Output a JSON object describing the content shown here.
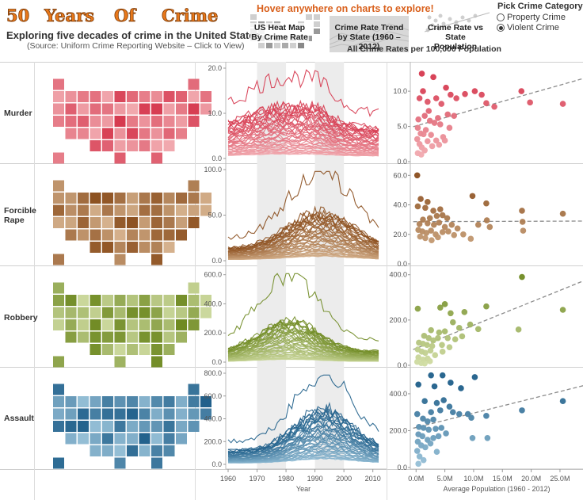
{
  "header": {
    "title_words": [
      "50",
      "Years",
      "Of",
      "Crime"
    ],
    "subtitle": "Exploring five decades of crime in the United States",
    "source": "(Source: Uniform Crime Reporting Website – Click to View)",
    "hover_hint": "Hover anywhere on charts to explore!",
    "nav_tabs": [
      {
        "label": "US Heat Map By Crime Rate",
        "icon": "heatmap-thumbnail"
      },
      {
        "label": "Crime Rate Trend by State (1960 – 2012)",
        "icon": "line-trend-thumbnail"
      },
      {
        "label": "Crime Rate vs State Population",
        "icon": "scatter-thumbnail"
      }
    ],
    "rates_note": "All Crime Rates per 100,000 Population"
  },
  "category_picker": {
    "title": "Pick Crime Category",
    "options": [
      {
        "label": "Property Crime",
        "selected": false
      },
      {
        "label": "Violent Crime",
        "selected": true
      }
    ]
  },
  "rows": [
    {
      "label": "Murder",
      "color": "#d6394f",
      "light": "#f7c2c4"
    },
    {
      "label": "Forcible Rape",
      "color": "#8a4d1c",
      "light": "#e3c4a2"
    },
    {
      "label": "Robbery",
      "color": "#6f8a22",
      "light": "#dde7b4"
    },
    {
      "label": "Assault",
      "color": "#1f5f8a",
      "light": "#a9cfe3"
    }
  ],
  "chart_data": [
    {
      "type": "heatmap",
      "title": "US Heat Map By Crime Rate",
      "description_series": [
        "Murder",
        "Forcible Rape",
        "Robbery",
        "Assault"
      ],
      "color_scale": "light = low rate, dark = high rate"
    },
    {
      "type": "line",
      "title": "Crime Rate Trend by State (1960 – 2012)",
      "xlabel": "Year",
      "x_ticks": [
        1960,
        1970,
        1980,
        1990,
        2000,
        2010
      ],
      "x_range": [
        1960,
        2012
      ],
      "shaded_bands": [
        [
          1970,
          1980
        ],
        [
          1990,
          2000
        ]
      ],
      "panels": [
        {
          "name": "Murder",
          "y_ticks": [
            "0.0",
            "10.0",
            "20.0"
          ],
          "ylim": [
            0,
            20
          ],
          "series_summary": {
            "peak_year": 1980,
            "max_state_peak": 18,
            "typical_range": [
              1,
              12
            ]
          }
        },
        {
          "name": "Forcible Rape",
          "y_ticks": [
            "0.0",
            "50.0",
            "100.0"
          ],
          "ylim": [
            0,
            100
          ],
          "series_summary": {
            "peak_year": 1992,
            "max_state_peak": 96,
            "typical_range": [
              5,
              55
            ]
          }
        },
        {
          "name": "Robbery",
          "y_ticks": [
            "0.0",
            "200.0",
            "400.0",
            "600.0"
          ],
          "ylim": [
            0,
            620
          ],
          "series_summary": {
            "peak_year": 1981,
            "max_state_peak": 600,
            "typical_range": [
              20,
              300
            ]
          }
        },
        {
          "name": "Assault",
          "y_ticks": [
            "0.0",
            "200.0",
            "400.0",
            "600.0",
            "800.0"
          ],
          "ylim": [
            0,
            800
          ],
          "series_summary": {
            "peak_year": 1993,
            "max_state_peak": 790,
            "typical_range": [
              50,
              500
            ]
          }
        }
      ]
    },
    {
      "type": "scatter",
      "title": "Crime Rate vs State Population",
      "xlabel": "Average Population (1960 - 2012)",
      "x_ticks": [
        "0.0M",
        "5.0M",
        "10.0M",
        "15.0M",
        "20.0M",
        "25.0M"
      ],
      "xlim": [
        -1,
        29
      ],
      "trend_line": "dashed linear fit",
      "panels": [
        {
          "name": "Murder",
          "y_ticks": [
            "0.0",
            "5.0",
            "10.0"
          ],
          "ylim": [
            0,
            13.5
          ],
          "points": [
            [
              1.0,
              12.5
            ],
            [
              3.0,
              12.0
            ],
            [
              0.6,
              9.0
            ],
            [
              1.2,
              10.0
            ],
            [
              2.0,
              8.5
            ],
            [
              3.5,
              9.0
            ],
            [
              4.4,
              8.2
            ],
            [
              5.2,
              10.5
            ],
            [
              6.0,
              9.5
            ],
            [
              7.0,
              9.0
            ],
            [
              8.5,
              9.6
            ],
            [
              10.2,
              10.0
            ],
            [
              11.4,
              9.5
            ],
            [
              12.2,
              8.3
            ],
            [
              13.6,
              7.8
            ],
            [
              18.3,
              10.0
            ],
            [
              19.8,
              8.4
            ],
            [
              25.5,
              8.2
            ],
            [
              0.4,
              6.0
            ],
            [
              1.5,
              6.5
            ],
            [
              2.4,
              5.8
            ],
            [
              3.2,
              5.5
            ],
            [
              4.2,
              5.3
            ],
            [
              5.5,
              6.7
            ],
            [
              6.6,
              6.5
            ],
            [
              0.3,
              4.8
            ],
            [
              0.8,
              4.0
            ],
            [
              1.7,
              4.5
            ],
            [
              2.6,
              3.8
            ],
            [
              3.5,
              3.0
            ],
            [
              4.7,
              3.5
            ],
            [
              5.8,
              4.8
            ],
            [
              0.2,
              3.2
            ],
            [
              0.6,
              2.5
            ],
            [
              1.0,
              2.0
            ],
            [
              1.5,
              1.6
            ],
            [
              2.0,
              2.9
            ],
            [
              2.8,
              2.2
            ],
            [
              0.3,
              1.2
            ],
            [
              0.9,
              1.0
            ],
            [
              4.0,
              2.4
            ],
            [
              5.0,
              3.0
            ],
            [
              1.3,
              3.9
            ],
            [
              2.2,
              7.2
            ],
            [
              3.8,
              6.2
            ]
          ]
        },
        {
          "name": "Forcible Rape",
          "y_ticks": [
            "0.0",
            "20.0",
            "40.0",
            "60.0"
          ],
          "ylim": [
            0,
            65
          ],
          "points": [
            [
              0.2,
              60.0
            ],
            [
              0.8,
              44.0
            ],
            [
              2.0,
              42.0
            ],
            [
              0.3,
              39.0
            ],
            [
              1.6,
              38.0
            ],
            [
              3.0,
              36.0
            ],
            [
              4.2,
              37.0
            ],
            [
              4.6,
              33.0
            ],
            [
              2.4,
              31.0
            ],
            [
              3.6,
              32.5
            ],
            [
              5.4,
              31.0
            ],
            [
              9.8,
              46.0
            ],
            [
              12.2,
              41.0
            ],
            [
              18.4,
              36.0
            ],
            [
              1.2,
              30.0
            ],
            [
              0.6,
              27.0
            ],
            [
              2.0,
              27.5
            ],
            [
              3.1,
              26.5
            ],
            [
              4.0,
              28.0
            ],
            [
              5.0,
              25.0
            ],
            [
              6.2,
              26.5
            ],
            [
              7.2,
              24.0
            ],
            [
              0.4,
              23.0
            ],
            [
              1.1,
              22.0
            ],
            [
              1.8,
              21.0
            ],
            [
              2.6,
              22.5
            ],
            [
              3.4,
              20.0
            ],
            [
              4.6,
              21.5
            ],
            [
              5.6,
              22.0
            ],
            [
              6.6,
              19.5
            ],
            [
              8.2,
              20.0
            ],
            [
              10.8,
              26.5
            ],
            [
              12.3,
              29.5
            ],
            [
              18.5,
              28.5
            ],
            [
              18.6,
              22.5
            ],
            [
              25.5,
              34.0
            ],
            [
              0.7,
              18.5
            ],
            [
              1.6,
              17.5
            ],
            [
              2.7,
              16.0
            ],
            [
              3.8,
              18.0
            ],
            [
              9.5,
              17.0
            ],
            [
              12.8,
              25.0
            ]
          ]
        },
        {
          "name": "Robbery",
          "y_ticks": [
            "0.0",
            "200.0",
            "400.0"
          ],
          "ylim": [
            0,
            420
          ],
          "points": [
            [
              0.3,
              250
            ],
            [
              4.2,
              255
            ],
            [
              5.0,
              270
            ],
            [
              6.0,
              230
            ],
            [
              12.2,
              260
            ],
            [
              18.4,
              390
            ],
            [
              25.5,
              245
            ],
            [
              8.4,
              235
            ],
            [
              17.8,
              158
            ],
            [
              6.4,
              190
            ],
            [
              7.5,
              165
            ],
            [
              9.4,
              180
            ],
            [
              10.8,
              160
            ],
            [
              2.6,
              155
            ],
            [
              4.0,
              145
            ],
            [
              5.0,
              150
            ],
            [
              1.4,
              130
            ],
            [
              2.2,
              120
            ],
            [
              3.0,
              110
            ],
            [
              3.8,
              120
            ],
            [
              5.5,
              120
            ],
            [
              6.8,
              115
            ],
            [
              8.0,
              128
            ],
            [
              0.5,
              100
            ],
            [
              1.2,
              95
            ],
            [
              1.9,
              90
            ],
            [
              2.8,
              85
            ],
            [
              4.5,
              90
            ],
            [
              5.8,
              80
            ],
            [
              0.3,
              70
            ],
            [
              1.0,
              60
            ],
            [
              1.6,
              55
            ],
            [
              2.5,
              65
            ],
            [
              3.3,
              45
            ],
            [
              4.6,
              60
            ],
            [
              0.4,
              35
            ],
            [
              1.2,
              25
            ],
            [
              2.0,
              30
            ],
            [
              0.2,
              15
            ],
            [
              0.9,
              10
            ],
            [
              1.5,
              8
            ],
            [
              2.4,
              18
            ]
          ]
        },
        {
          "name": "Assault",
          "y_ticks": [
            "0.0",
            "200.0",
            "400.0"
          ],
          "ylim": [
            0,
            520
          ],
          "points": [
            [
              0.4,
              450
            ],
            [
              2.6,
              500
            ],
            [
              4.6,
              500
            ],
            [
              7.8,
              430
            ],
            [
              10.2,
              490
            ],
            [
              6.0,
              460
            ],
            [
              3.2,
              440
            ],
            [
              1.5,
              360
            ],
            [
              3.6,
              350
            ],
            [
              4.8,
              365
            ],
            [
              5.8,
              330
            ],
            [
              2.6,
              300
            ],
            [
              4.2,
              310
            ],
            [
              0.2,
              290
            ],
            [
              6.4,
              300
            ],
            [
              7.5,
              290
            ],
            [
              9.0,
              290
            ],
            [
              1.2,
              265
            ],
            [
              2.0,
              250
            ],
            [
              3.0,
              260
            ],
            [
              9.6,
              270
            ],
            [
              12.2,
              280
            ],
            [
              18.4,
              310
            ],
            [
              25.5,
              360
            ],
            [
              0.5,
              220
            ],
            [
              1.3,
              215
            ],
            [
              2.2,
              205
            ],
            [
              3.4,
              210
            ],
            [
              4.4,
              215
            ],
            [
              0.4,
              180
            ],
            [
              1.1,
              170
            ],
            [
              2.0,
              150
            ],
            [
              3.0,
              160
            ],
            [
              3.9,
              170
            ],
            [
              5.2,
              185
            ],
            [
              9.8,
              160
            ],
            [
              12.4,
              160
            ],
            [
              0.3,
              140
            ],
            [
              0.9,
              120
            ],
            [
              1.6,
              110
            ],
            [
              2.5,
              130
            ],
            [
              0.2,
              90
            ],
            [
              0.6,
              60
            ],
            [
              1.3,
              40
            ],
            [
              0.4,
              20
            ],
            [
              3.6,
              85
            ]
          ]
        }
      ]
    }
  ]
}
